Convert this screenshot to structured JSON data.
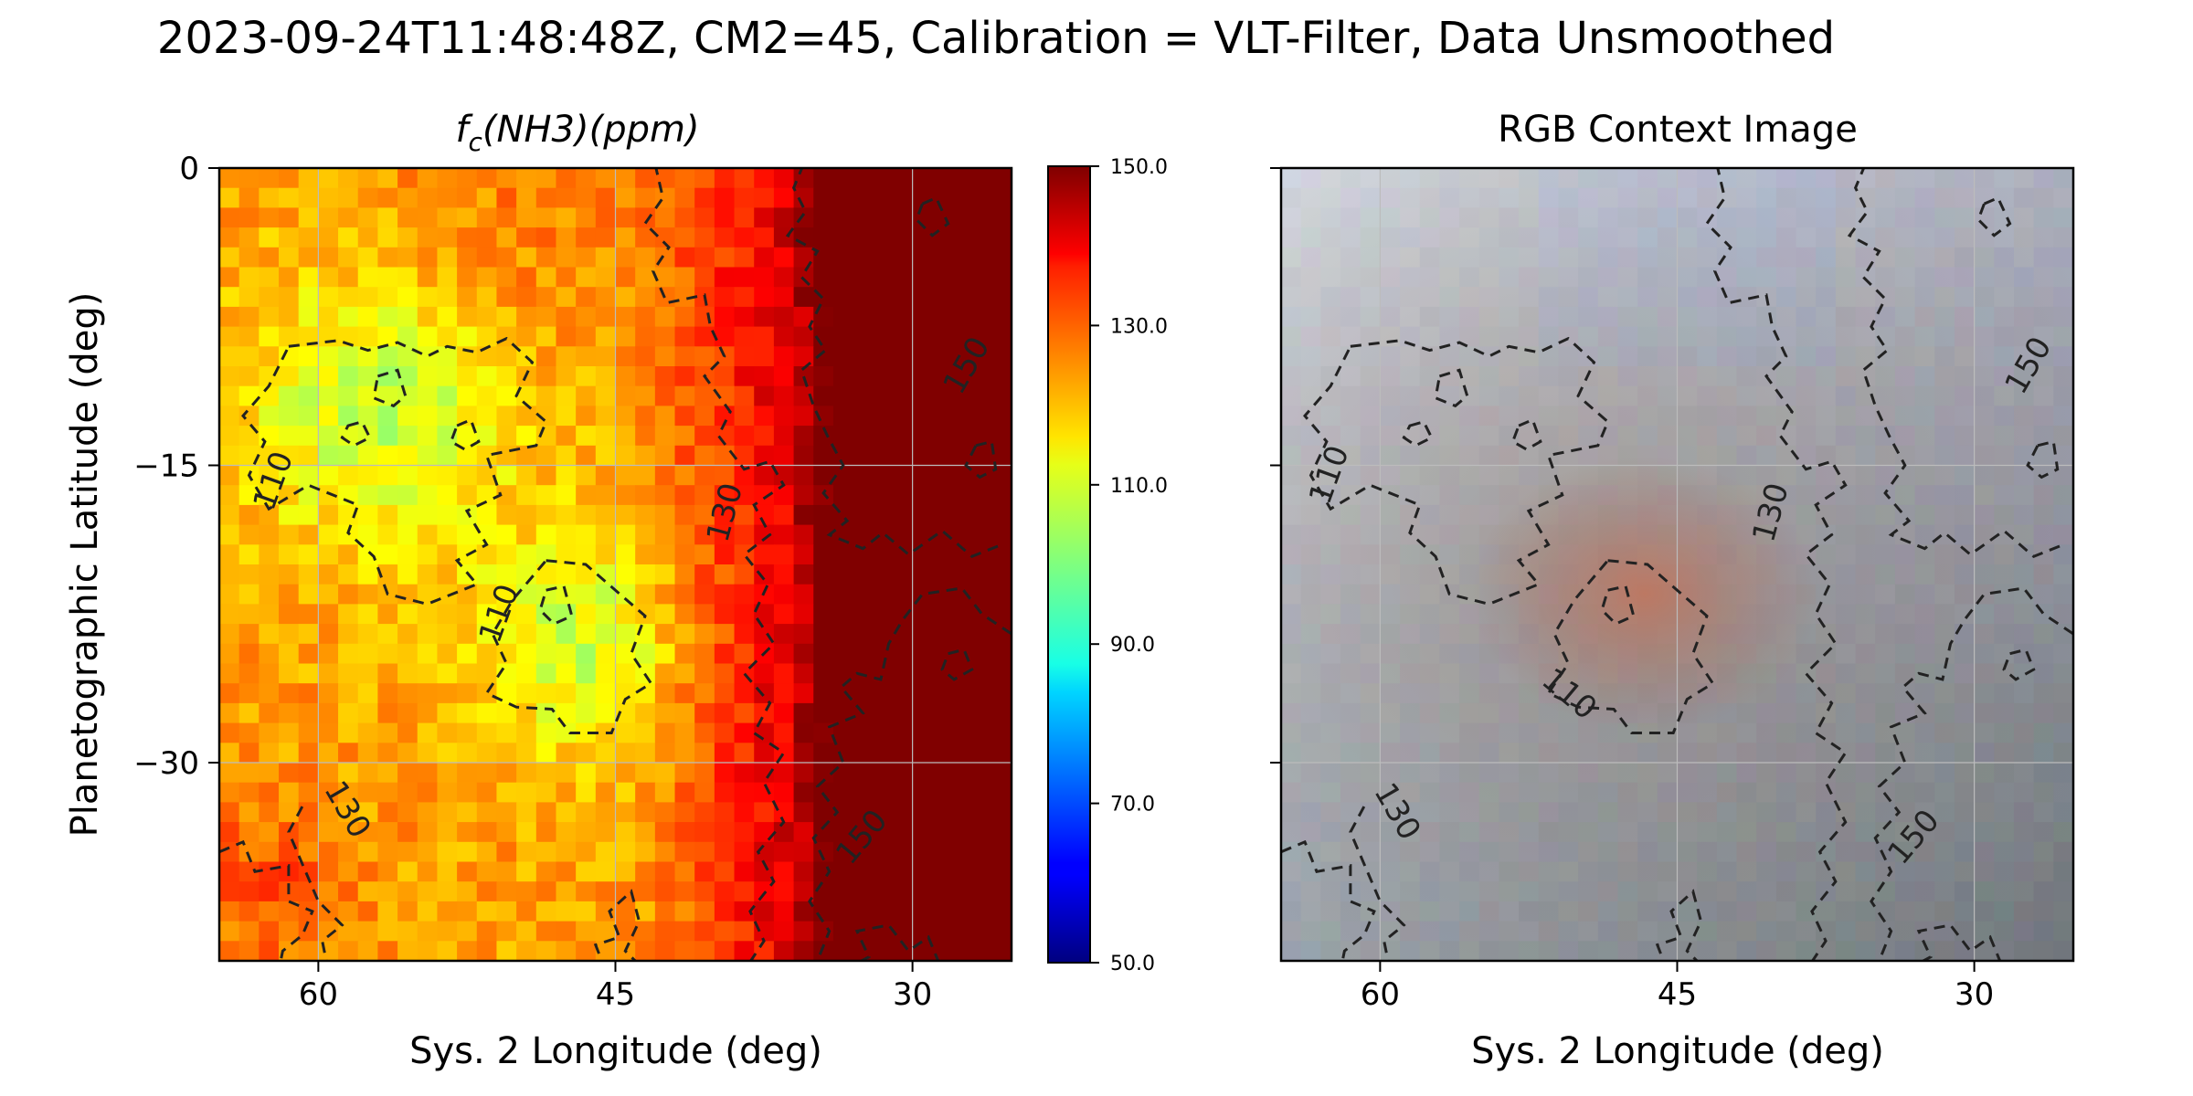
{
  "chart_data": {
    "suptitle": "2023-09-24T11:48:48Z, CM2=45, Calibration = VLT-Filter, Data Unsmoothed",
    "panels": [
      {
        "type": "heatmap",
        "title_base": "f",
        "title_sub": "c",
        "title_rest": "(NH3)(ppm)",
        "xlabel": "Sys. 2 Longitude (deg)",
        "ylabel": "Planetographic Latitude (deg)",
        "xlim": [
          65,
          25
        ],
        "ylim": [
          -40,
          0
        ],
        "xticks": [
          60,
          45,
          30
        ],
        "xtick_labels": [
          "60",
          "45",
          "30"
        ],
        "yticks": [
          0,
          -15,
          -30
        ],
        "ytick_labels": [
          "0",
          "−15",
          "−30"
        ],
        "grid": true,
        "colormap": "jet",
        "clim": [
          50,
          150
        ],
        "colorbar_ticks": [
          50,
          70,
          90,
          110,
          130,
          150
        ],
        "colorbar_tick_labels": [
          "50.0",
          "70.0",
          "90.0",
          "110.0",
          "130.0",
          "150.0"
        ],
        "contour_levels": [
          110,
          130,
          150
        ],
        "contour_labels": [
          {
            "text": "110",
            "lon": 62.2,
            "lat": -15.8,
            "angle": -70
          },
          {
            "text": "110",
            "lon": 50.8,
            "lat": -22.5,
            "angle": -70
          },
          {
            "text": "130",
            "lon": 39.4,
            "lat": -17.4,
            "angle": -75
          },
          {
            "text": "150",
            "lon": 27.2,
            "lat": -10.0,
            "angle": -60
          },
          {
            "text": "130",
            "lon": 58.6,
            "lat": -32.4,
            "angle": 60
          },
          {
            "text": "150",
            "lon": 32.5,
            "lat": -33.8,
            "angle": -50
          }
        ]
      },
      {
        "type": "image",
        "title": "RGB Context Image",
        "xlabel": "Sys. 2 Longitude (deg)",
        "xlim": [
          65,
          25
        ],
        "ylim": [
          -40,
          0
        ],
        "xticks": [
          60,
          45,
          30
        ],
        "xtick_labels": [
          "60",
          "45",
          "30"
        ],
        "yticks": [
          0,
          -15,
          -30
        ],
        "grid": true,
        "contour_labels": [
          {
            "text": "110",
            "lon": 62.5,
            "lat": -15.5,
            "angle": -70
          },
          {
            "text": "130",
            "lon": 40.2,
            "lat": -17.4,
            "angle": -75
          },
          {
            "text": "150",
            "lon": 27.2,
            "lat": -10.0,
            "angle": -60
          },
          {
            "text": "110",
            "lon": 50.5,
            "lat": -26.6,
            "angle": 40
          },
          {
            "text": "130",
            "lon": 59.2,
            "lat": -32.5,
            "angle": 60
          },
          {
            "text": "150",
            "lon": 33.0,
            "lat": -33.8,
            "angle": -50
          }
        ]
      }
    ]
  }
}
